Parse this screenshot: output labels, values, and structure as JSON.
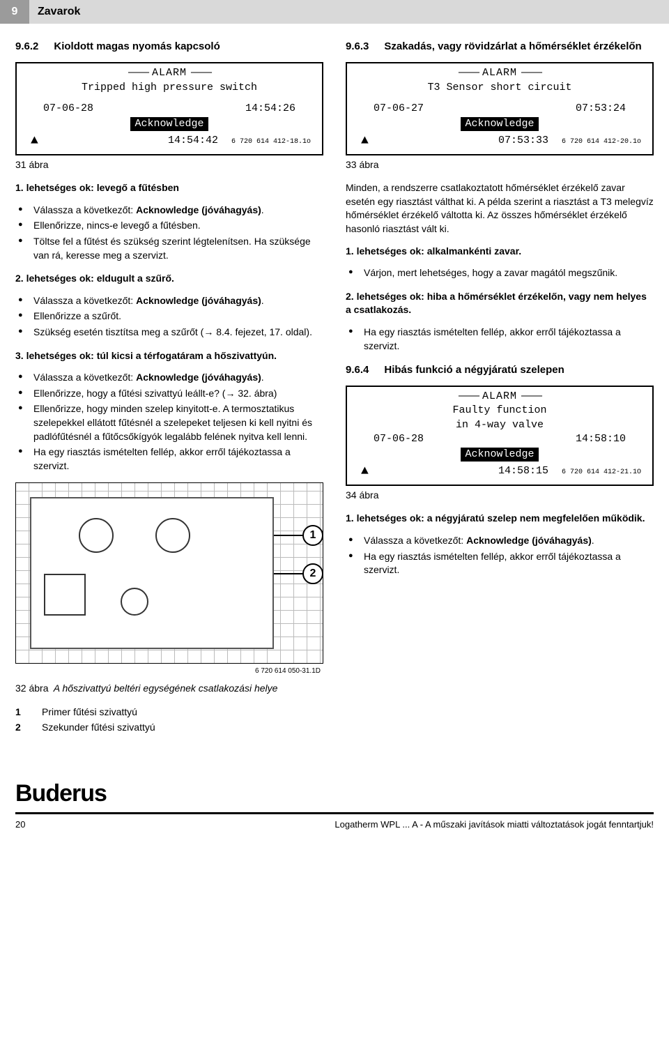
{
  "header": {
    "page_number": "9",
    "chapter": "Zavarok"
  },
  "left": {
    "s962": {
      "num": "9.6.2",
      "title": "Kioldott magas nyomás kapcsoló",
      "lcd": {
        "alarm": "ALARM",
        "msg": "Tripped high pressure switch",
        "date": "07-06-28",
        "time1": "14:54:26",
        "ack": "Acknowledge",
        "time2": "14:54:42",
        "ref": "6 720 614 412-18.1o"
      },
      "fig31": "31 ábra",
      "cause1_title": "1. lehetséges ok: levegő a fűtésben",
      "cause1_items": [
        "Válassza a következőt: <b>Acknowledge (jóváhagyás)</b>.",
        "Ellenőrizze, nincs-e levegő a fűtésben.",
        "Töltse fel a fűtést és szükség szerint légtelenítsen. Ha szüksége van rá, keresse meg a szervizt."
      ],
      "cause2_title": "2. lehetséges ok: eldugult a szűrő.",
      "cause2_items": [
        "Válassza a következőt: <b>Acknowledge (jóváhagyás)</b>.",
        "Ellenőrizze a szűrőt.",
        "Szükség esetén tisztítsa meg a szűrőt (→ 8.4. fejezet,  17. oldal)."
      ],
      "cause3_title": "3. lehetséges ok: túl kicsi a térfogatáram a hőszivattyún.",
      "cause3_items": [
        "Válassza a következőt: <b>Acknowledge (jóváhagyás)</b>.",
        "Ellenőrizze, hogy a fűtési szivattyú leállt-e? (→ 32. ábra)",
        "Ellenőrizze, hogy minden szelep kinyitott-e. A termosztatikus szelepekkel ellátott fűtésnél a szelepeket teljesen ki kell nyitni és padlófűtésnél a fűtőcsőkígyók legalább felének nyitva kell lenni.",
        "Ha egy riasztás ismételten fellép, akkor erről tájékoztassa a szervizt."
      ],
      "diagram_ref": "6 720 614 050-31.1D",
      "fig32_line1": "32 ábra",
      "fig32_caption": "A hőszivattyú beltéri egységének csatlakozási helye",
      "legend": [
        {
          "n": "1",
          "t": "Primer fűtési szivattyú"
        },
        {
          "n": "2",
          "t": "Szekunder fűtési szivattyú"
        }
      ]
    }
  },
  "right": {
    "s963": {
      "num": "9.6.3",
      "title": "Szakadás, vagy rövidzárlat a hőmérséklet érzékelőn",
      "lcd": {
        "alarm": "ALARM",
        "msg": "T3 Sensor short circuit",
        "date": "07-06-27",
        "time1": "07:53:24",
        "ack": "Acknowledge",
        "time2": "07:53:33",
        "ref": "6 720 614 412-20.1o"
      },
      "fig33": "33 ábra",
      "para": "Minden, a rendszerre csatlakoztatott hőmérséklet érzékelő zavar esetén egy riasztást válthat ki. A példa szerint a riasztást a T3 melegvíz hőmérséklet érzékelő váltotta ki. Az összes hőmérséklet érzékelő hasonló riasztást vált ki.",
      "cause1_title": "1. lehetséges ok: alkalmankénti zavar.",
      "cause1_items": [
        "Várjon, mert lehetséges, hogy a zavar magától megszűnik."
      ],
      "cause2_title": "2. lehetséges ok: hiba a hőmérséklet érzékelőn, vagy nem helyes a csatlakozás.",
      "cause2_items": [
        "Ha egy riasztás ismételten fellép, akkor erről tájékoztassa a szervizt."
      ]
    },
    "s964": {
      "num": "9.6.4",
      "title": "Hibás funkció a négyjáratú szelepen",
      "lcd": {
        "alarm": "ALARM",
        "msg1": "Faulty function",
        "msg2": "in 4-way valve",
        "date": "07-06-28",
        "time1": "14:58:10",
        "ack": "Acknowledge",
        "time2": "14:58:15",
        "ref": "6 720 614 412-21.1O"
      },
      "fig34": "34 ábra",
      "cause1_title": "1. lehetséges ok: a négyjáratú szelep nem megfelelően működik.",
      "cause1_items": [
        "Válassza a következőt: <b>Acknowledge (jóváhagyás)</b>.",
        "Ha egy riasztás ismételten fellép, akkor erről tájékoztassa a szervizt."
      ]
    }
  },
  "footer": {
    "brand": "Buderus",
    "page": "20",
    "note": "Logatherm WPL ... A - A műszaki javítások miatti változtatások jogát fenntartjuk!"
  }
}
